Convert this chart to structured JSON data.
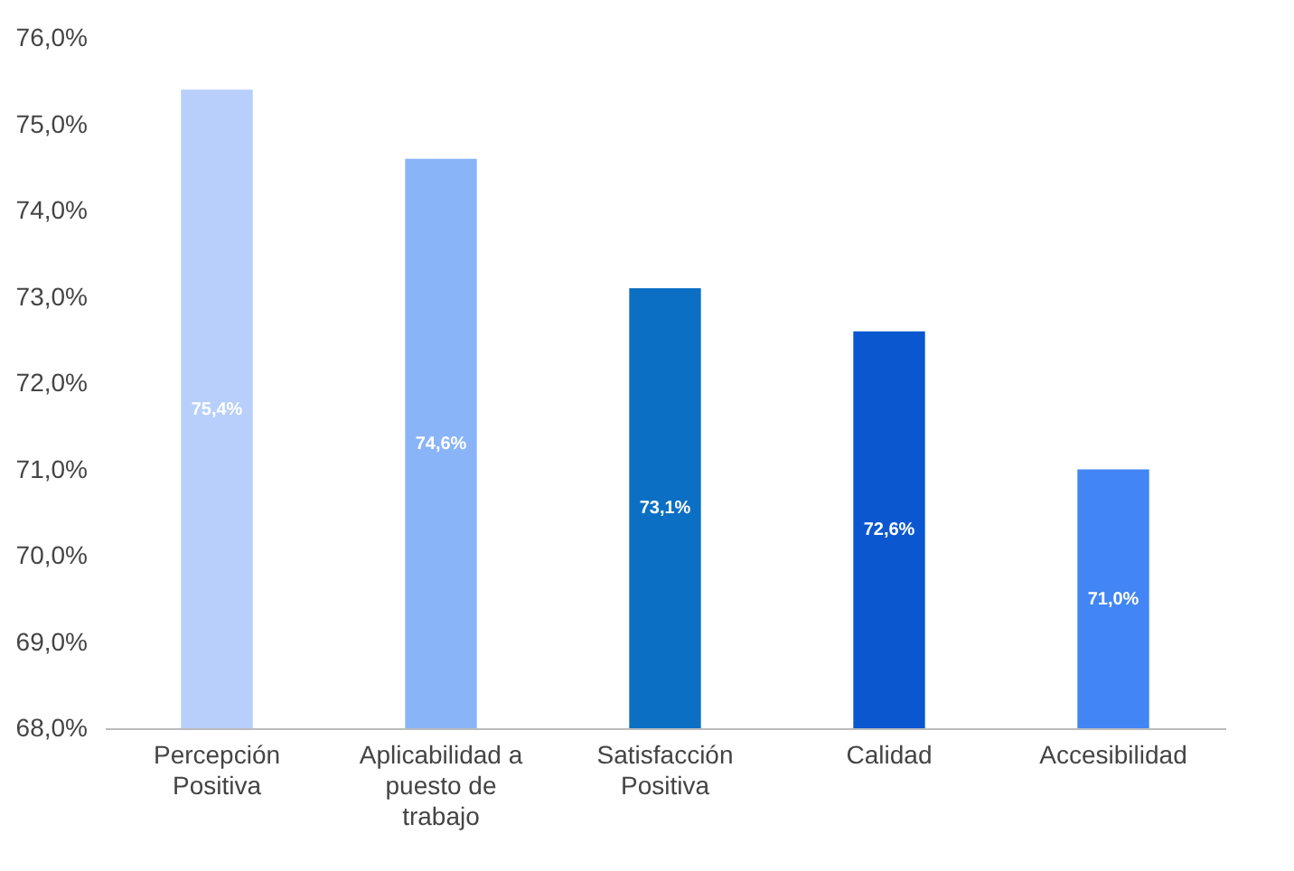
{
  "chart_data": {
    "type": "bar",
    "categories": [
      "Percepción Positiva",
      "Aplicabilidad a puesto de trabajo",
      "Satisfacción Positiva",
      "Calidad",
      "Accesibilidad"
    ],
    "values": [
      75.4,
      74.6,
      73.1,
      72.6,
      71.0
    ],
    "colors": [
      "#b7cffa",
      "#8ab4f8",
      "#0b70c4",
      "#0b57d0",
      "#4285f4"
    ],
    "value_labels": [
      "75,4%",
      "74,6%",
      "73,1%",
      "72,6%",
      "71,0%"
    ],
    "ylim": [
      68,
      76
    ],
    "yticks": [
      {
        "value": 68,
        "label": "68,0%"
      },
      {
        "value": 69,
        "label": "69,0%"
      },
      {
        "value": 70,
        "label": "70,0%"
      },
      {
        "value": 71,
        "label": "71,0%"
      },
      {
        "value": 72,
        "label": "72,0%"
      },
      {
        "value": 73,
        "label": "73,0%"
      },
      {
        "value": 74,
        "label": "74,0%"
      },
      {
        "value": 75,
        "label": "75,0%"
      },
      {
        "value": 76,
        "label": "76,0%"
      }
    ],
    "grid": false
  }
}
